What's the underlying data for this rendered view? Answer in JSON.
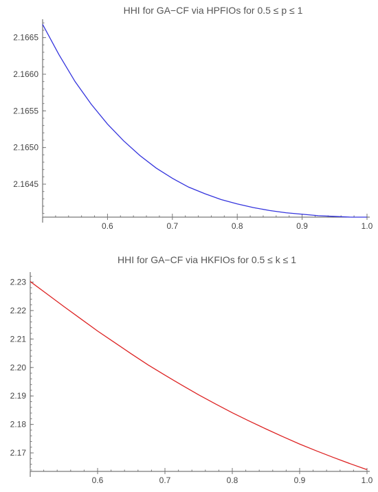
{
  "chart_data": [
    {
      "type": "line",
      "title": "HHI for GA−CF via HPFIOs for 0.5 ≤ p ≤ 1",
      "xlabel": "",
      "ylabel": "",
      "xlim": [
        0.5,
        1.0
      ],
      "ylim": [
        2.16405,
        2.16675
      ],
      "x_ticks": [
        0.6,
        0.7,
        0.8,
        0.9,
        1.0
      ],
      "x_tick_labels": [
        "0.6",
        "0.7",
        "0.8",
        "0.9",
        "1.0"
      ],
      "y_ticks": [
        2.1645,
        2.165,
        2.1655,
        2.166,
        2.1665
      ],
      "y_tick_labels": [
        "2.1645",
        "2.1650",
        "2.1655",
        "2.1660",
        "2.1665"
      ],
      "grid": false,
      "color": "#3333dd",
      "series": [
        {
          "x": [
            0.5,
            0.525,
            0.55,
            0.575,
            0.6,
            0.625,
            0.65,
            0.675,
            0.7,
            0.725,
            0.75,
            0.775,
            0.8,
            0.825,
            0.85,
            0.875,
            0.9,
            0.925,
            0.95,
            0.975,
            1.0
          ],
          "y": [
            2.16668,
            2.16627,
            2.1659,
            2.16559,
            2.16532,
            2.16509,
            2.16489,
            2.16472,
            2.16458,
            2.16446,
            2.16437,
            2.16429,
            2.16423,
            2.16418,
            2.16414,
            2.16411,
            2.16409,
            2.16407,
            2.16406,
            2.16405,
            2.16405
          ]
        }
      ]
    },
    {
      "type": "line",
      "title": "HHI for GA−CF via HKFIOs for 0.5 ≤ k ≤ 1",
      "xlabel": "",
      "ylabel": "",
      "xlim": [
        0.5,
        1.0
      ],
      "ylim": [
        2.1635,
        2.2335
      ],
      "x_ticks": [
        0.6,
        0.7,
        0.8,
        0.9,
        1.0
      ],
      "x_tick_labels": [
        "0.6",
        "0.7",
        "0.8",
        "0.9",
        "1.0"
      ],
      "y_ticks": [
        2.17,
        2.18,
        2.19,
        2.2,
        2.21,
        2.22,
        2.23
      ],
      "y_tick_labels": [
        "2.17",
        "2.18",
        "2.19",
        "2.20",
        "2.21",
        "2.22",
        "2.23"
      ],
      "grid": false,
      "color": "#dd2222",
      "series": [
        {
          "x": [
            0.5,
            0.525,
            0.55,
            0.575,
            0.6,
            0.625,
            0.65,
            0.675,
            0.7,
            0.725,
            0.75,
            0.775,
            0.8,
            0.825,
            0.85,
            0.875,
            0.9,
            0.925,
            0.95,
            0.975,
            1.0
          ],
          "y": [
            2.2302,
            2.2258,
            2.2214,
            2.2171,
            2.2128,
            2.2088,
            2.2048,
            2.2009,
            2.1973,
            2.1938,
            2.1904,
            2.1872,
            2.1841,
            2.1812,
            2.1784,
            2.1757,
            2.1731,
            2.1707,
            2.1684,
            2.1662,
            2.1641
          ]
        }
      ]
    }
  ]
}
